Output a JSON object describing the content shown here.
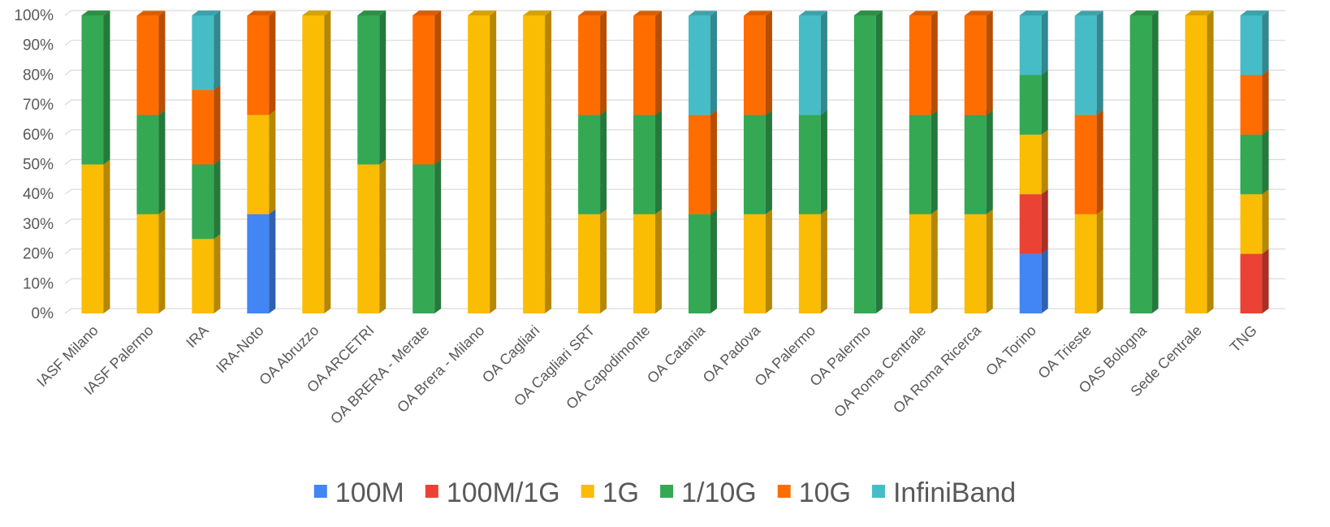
{
  "chart_data": {
    "type": "bar",
    "stacked": "percent",
    "categories": [
      "IASF Milano",
      "IASF Palermo",
      "IRA",
      "IRA-Noto",
      "OA Abruzzo",
      "OA ARCETRI",
      "OA BRERA  - Merate",
      "OA Brera - Milano",
      "OA Cagliari",
      "OA Cagliari SRT",
      "OA Capodimonte",
      "OA Catania",
      "OA Padova",
      "OA Palermo",
      "OA Palermo",
      "OA Roma Centrale",
      "OA Roma Ricerca",
      "OA Torino",
      "OA Trieste",
      "OAS Bologna",
      "Sede Centrale",
      "TNG"
    ],
    "series": [
      {
        "name": "100M",
        "color": "#4285F4",
        "values": [
          0,
          0,
          0,
          33.3,
          0,
          0,
          0,
          0,
          0,
          0,
          0,
          0,
          0,
          0,
          0,
          0,
          0,
          20,
          0,
          0,
          0,
          0
        ]
      },
      {
        "name": "100M/1G",
        "color": "#EA4335",
        "values": [
          0,
          0,
          0,
          0,
          0,
          0,
          0,
          0,
          0,
          0,
          0,
          0,
          0,
          0,
          0,
          0,
          0,
          20,
          0,
          0,
          0,
          20
        ]
      },
      {
        "name": "1G",
        "color": "#FBBC04",
        "values": [
          50,
          33.3,
          25,
          33.3,
          100,
          50,
          0,
          100,
          100,
          33.3,
          33.3,
          0,
          33.3,
          33.3,
          0,
          33.3,
          33.3,
          20,
          33.3,
          0,
          100,
          20
        ]
      },
      {
        "name": "1/10G",
        "color": "#34A853",
        "values": [
          50,
          33.3,
          25,
          0,
          0,
          50,
          50,
          0,
          0,
          33.3,
          33.3,
          33.3,
          33.3,
          33.3,
          100,
          33.3,
          33.3,
          20,
          0,
          100,
          0,
          20
        ]
      },
      {
        "name": "10G",
        "color": "#FF6D01",
        "values": [
          0,
          33.3,
          25,
          33.3,
          0,
          0,
          50,
          0,
          0,
          33.3,
          33.3,
          33.3,
          33.3,
          0,
          0,
          33.3,
          33.3,
          0,
          33.3,
          0,
          0,
          20
        ]
      },
      {
        "name": "InfiniBand",
        "color": "#46BDC6",
        "values": [
          0,
          0,
          25,
          0,
          0,
          0,
          0,
          0,
          0,
          0,
          0,
          33.3,
          0,
          33.3,
          0,
          0,
          0,
          20,
          33.3,
          0,
          0,
          20
        ]
      }
    ],
    "ylim": [
      0,
      100
    ],
    "yticks": [
      "0%",
      "10%",
      "20%",
      "30%",
      "40%",
      "50%",
      "60%",
      "70%",
      "80%",
      "90%",
      "100%"
    ],
    "grid": true,
    "legend_position": "bottom",
    "title": "",
    "xlabel": "",
    "ylabel": ""
  }
}
